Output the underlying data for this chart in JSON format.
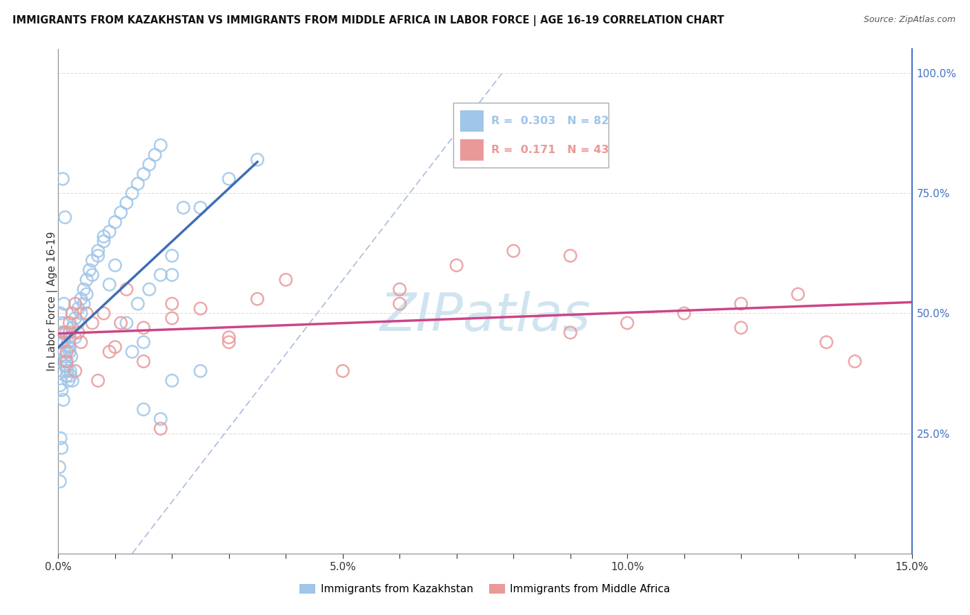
{
  "title": "IMMIGRANTS FROM KAZAKHSTAN VS IMMIGRANTS FROM MIDDLE AFRICA IN LABOR FORCE | AGE 16-19 CORRELATION CHART",
  "source": "Source: ZipAtlas.com",
  "ylabel": "In Labor Force | Age 16-19",
  "xlim": [
    0.0,
    0.15
  ],
  "ylim": [
    0.0,
    1.05
  ],
  "xtick_labels": [
    "0.0%",
    "",
    "",
    "",
    "",
    "5.0%",
    "",
    "",
    "",
    "",
    "10.0%",
    "",
    "",
    "",
    "",
    "15.0%"
  ],
  "xtick_values": [
    0.0,
    0.01,
    0.02,
    0.03,
    0.04,
    0.05,
    0.06,
    0.07,
    0.08,
    0.09,
    0.1,
    0.11,
    0.12,
    0.13,
    0.14,
    0.15
  ],
  "ytick_labels_right": [
    "25.0%",
    "50.0%",
    "75.0%",
    "100.0%"
  ],
  "ytick_values_right": [
    0.25,
    0.5,
    0.75,
    1.0
  ],
  "R_kaz": 0.303,
  "N_kaz": 82,
  "R_mid": 0.171,
  "N_mid": 43,
  "color_kaz": "#9fc5e8",
  "color_mid": "#ea9999",
  "line_color_kaz": "#3d6eb5",
  "line_color_mid": "#cc4488",
  "ref_line_color": "#aabbdd",
  "watermark_color": "#d0e4f0",
  "legend_label_kaz": "Immigrants from Kazakhstan",
  "legend_label_mid": "Immigrants from Middle Africa",
  "kaz_x": [
    0.0003,
    0.0005,
    0.0008,
    0.001,
    0.0012,
    0.0015,
    0.0018,
    0.002,
    0.0022,
    0.0025,
    0.0005,
    0.0008,
    0.001,
    0.0013,
    0.0016,
    0.002,
    0.0023,
    0.0003,
    0.0006,
    0.0009,
    0.0012,
    0.0015,
    0.0018,
    0.0021,
    0.0004,
    0.0007,
    0.001,
    0.0014,
    0.0017,
    0.002,
    0.0025,
    0.003,
    0.0035,
    0.004,
    0.0045,
    0.005,
    0.0055,
    0.006,
    0.007,
    0.008,
    0.009,
    0.01,
    0.011,
    0.012,
    0.013,
    0.014,
    0.015,
    0.016,
    0.017,
    0.018,
    0.02,
    0.022,
    0.003,
    0.0035,
    0.004,
    0.0045,
    0.005,
    0.006,
    0.007,
    0.008,
    0.009,
    0.01,
    0.012,
    0.014,
    0.016,
    0.018,
    0.02,
    0.025,
    0.03,
    0.035,
    0.013,
    0.015,
    0.02,
    0.025,
    0.0008,
    0.0012,
    0.0006,
    0.0004,
    0.0002,
    0.0003,
    0.015,
    0.018
  ],
  "kaz_y": [
    0.42,
    0.4,
    0.38,
    0.44,
    0.41,
    0.39,
    0.43,
    0.45,
    0.37,
    0.36,
    0.46,
    0.44,
    0.42,
    0.4,
    0.38,
    0.43,
    0.41,
    0.35,
    0.34,
    0.32,
    0.39,
    0.37,
    0.36,
    0.38,
    0.5,
    0.48,
    0.52,
    0.46,
    0.44,
    0.42,
    0.47,
    0.49,
    0.51,
    0.53,
    0.55,
    0.57,
    0.59,
    0.61,
    0.63,
    0.65,
    0.67,
    0.69,
    0.71,
    0.73,
    0.75,
    0.77,
    0.79,
    0.81,
    0.83,
    0.85,
    0.58,
    0.72,
    0.45,
    0.48,
    0.5,
    0.52,
    0.54,
    0.58,
    0.62,
    0.66,
    0.56,
    0.6,
    0.48,
    0.52,
    0.55,
    0.58,
    0.62,
    0.72,
    0.78,
    0.82,
    0.42,
    0.44,
    0.36,
    0.38,
    0.78,
    0.7,
    0.22,
    0.24,
    0.18,
    0.15,
    0.3,
    0.28
  ],
  "mid_x": [
    0.0005,
    0.001,
    0.0015,
    0.002,
    0.0025,
    0.003,
    0.0035,
    0.004,
    0.006,
    0.008,
    0.01,
    0.012,
    0.015,
    0.018,
    0.02,
    0.025,
    0.03,
    0.035,
    0.04,
    0.05,
    0.06,
    0.07,
    0.08,
    0.09,
    0.1,
    0.11,
    0.12,
    0.13,
    0.135,
    0.0015,
    0.002,
    0.003,
    0.005,
    0.007,
    0.009,
    0.011,
    0.015,
    0.02,
    0.03,
    0.06,
    0.09,
    0.12,
    0.14
  ],
  "mid_y": [
    0.44,
    0.46,
    0.42,
    0.48,
    0.5,
    0.52,
    0.46,
    0.44,
    0.48,
    0.5,
    0.43,
    0.55,
    0.47,
    0.26,
    0.49,
    0.51,
    0.45,
    0.53,
    0.57,
    0.38,
    0.52,
    0.6,
    0.63,
    0.46,
    0.48,
    0.5,
    0.52,
    0.54,
    0.44,
    0.4,
    0.46,
    0.38,
    0.5,
    0.36,
    0.42,
    0.48,
    0.4,
    0.52,
    0.44,
    0.55,
    0.62,
    0.47,
    0.4
  ]
}
